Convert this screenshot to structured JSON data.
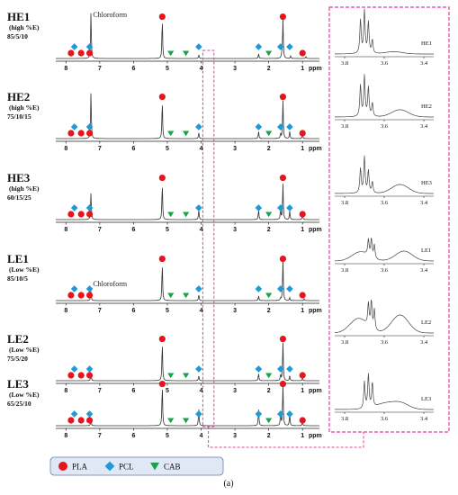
{
  "chart_data": {
    "type": "line",
    "xlabel": "ppm",
    "xlim": [
      8.3,
      0.5
    ],
    "ticks": [
      8,
      7,
      6,
      5,
      4,
      3,
      2,
      1
    ],
    "inset_xlim": [
      3.85,
      3.35
    ],
    "inset_ticks": [
      "3.8",
      "3.6",
      "3.4"
    ],
    "caption": "(a)",
    "chloroform_label": "Chloroform",
    "legend": [
      {
        "name": "PLA",
        "color": "#e8141b",
        "marker": "circle"
      },
      {
        "name": "PCL",
        "color": "#1e9ad8",
        "marker": "diamond"
      },
      {
        "name": "CAB",
        "color": "#17a34a",
        "marker": "triangle"
      }
    ],
    "spectra": [
      {
        "name": "HE1",
        "condition": "(high %E)",
        "ratio": "85/5/10",
        "chloroform_label": true,
        "inset_label": "HE1",
        "peaks": [
          [
            7.26,
            0.95
          ],
          [
            5.15,
            0.82
          ],
          [
            4.07,
            0.08
          ],
          [
            2.3,
            0.1
          ],
          [
            1.62,
            0.06
          ],
          [
            1.58,
            0.83
          ],
          [
            1.35,
            0.05
          ],
          [
            0.9,
            0.04
          ]
        ],
        "inset_peaks": [
          [
            3.72,
            0.75
          ],
          [
            3.7,
            0.95
          ],
          [
            3.68,
            0.7
          ],
          [
            3.66,
            0.3
          ]
        ],
        "inset_hump": [
          [
            3.55,
            0.05
          ]
        ]
      },
      {
        "name": "HE2",
        "condition": "(high %E)",
        "ratio": "75/10/15",
        "chloroform_label": false,
        "inset_label": "HE2",
        "peaks": [
          [
            7.26,
            0.95
          ],
          [
            5.15,
            0.78
          ],
          [
            4.07,
            0.12
          ],
          [
            2.3,
            0.15
          ],
          [
            1.65,
            0.1
          ],
          [
            1.58,
            0.8
          ],
          [
            1.38,
            0.15
          ],
          [
            1.0,
            0.08
          ]
        ],
        "inset_peaks": [
          [
            3.72,
            0.7
          ],
          [
            3.7,
            0.9
          ],
          [
            3.68,
            0.65
          ],
          [
            3.66,
            0.3
          ]
        ],
        "inset_hump": [
          [
            3.52,
            0.16
          ]
        ]
      },
      {
        "name": "HE3",
        "condition": "(high %E)",
        "ratio": "60/15/25",
        "chloroform_label": false,
        "inset_label": "HE3",
        "peaks": [
          [
            7.26,
            0.55
          ],
          [
            5.15,
            0.75
          ],
          [
            4.07,
            0.2
          ],
          [
            2.3,
            0.2
          ],
          [
            1.65,
            0.2
          ],
          [
            1.58,
            0.75
          ],
          [
            1.38,
            0.18
          ],
          [
            1.0,
            0.1
          ]
        ],
        "inset_peaks": [
          [
            3.72,
            0.55
          ],
          [
            3.7,
            0.8
          ],
          [
            3.68,
            0.5
          ],
          [
            3.66,
            0.25
          ]
        ],
        "inset_hump": [
          [
            3.52,
            0.2
          ]
        ]
      },
      {
        "name": "LE1",
        "condition": "(Low %E)",
        "ratio": "85/10/5",
        "chloroform_label": true,
        "inset_label": "LE1",
        "peaks": [
          [
            7.26,
            0.2
          ],
          [
            5.15,
            0.78
          ],
          [
            4.07,
            0.12
          ],
          [
            2.3,
            0.1
          ],
          [
            1.65,
            0.05
          ],
          [
            1.58,
            0.85
          ],
          [
            1.38,
            0.06
          ],
          [
            0.95,
            0.04
          ]
        ],
        "inset_peaks": [
          [
            3.68,
            0.35
          ],
          [
            3.665,
            0.4
          ],
          [
            3.65,
            0.3
          ]
        ],
        "inset_hump": [
          [
            3.72,
            0.2
          ],
          [
            3.5,
            0.22
          ]
        ]
      },
      {
        "name": "LE2",
        "condition": "(Low %E)",
        "ratio": "75/5/20",
        "chloroform_label": false,
        "inset_label": "LE2",
        "peaks": [
          [
            7.26,
            0.15
          ],
          [
            5.15,
            0.8
          ],
          [
            4.07,
            0.1
          ],
          [
            2.3,
            0.15
          ],
          [
            1.65,
            0.12
          ],
          [
            1.58,
            0.8
          ],
          [
            1.38,
            0.1
          ],
          [
            1.0,
            0.05
          ]
        ],
        "inset_peaks": [
          [
            3.68,
            0.5
          ],
          [
            3.665,
            0.6
          ],
          [
            3.65,
            0.45
          ]
        ],
        "inset_hump": [
          [
            3.73,
            0.32
          ],
          [
            3.52,
            0.4
          ]
        ]
      },
      {
        "name": "LE3",
        "condition": "(Low %E)",
        "ratio": "65/25/10",
        "chloroform_label": false,
        "inset_label": "LE3",
        "peaks": [
          [
            7.26,
            0.12
          ],
          [
            5.15,
            0.85
          ],
          [
            4.07,
            0.35
          ],
          [
            2.3,
            0.35
          ],
          [
            1.65,
            0.25
          ],
          [
            1.58,
            0.85
          ],
          [
            1.38,
            0.25
          ],
          [
            1.0,
            0.08
          ]
        ],
        "inset_peaks": [
          [
            3.7,
            0.6
          ],
          [
            3.68,
            0.75
          ],
          [
            3.66,
            0.55
          ]
        ],
        "inset_hump": [
          [
            3.6,
            0.12
          ],
          [
            3.52,
            0.15
          ]
        ]
      }
    ]
  }
}
